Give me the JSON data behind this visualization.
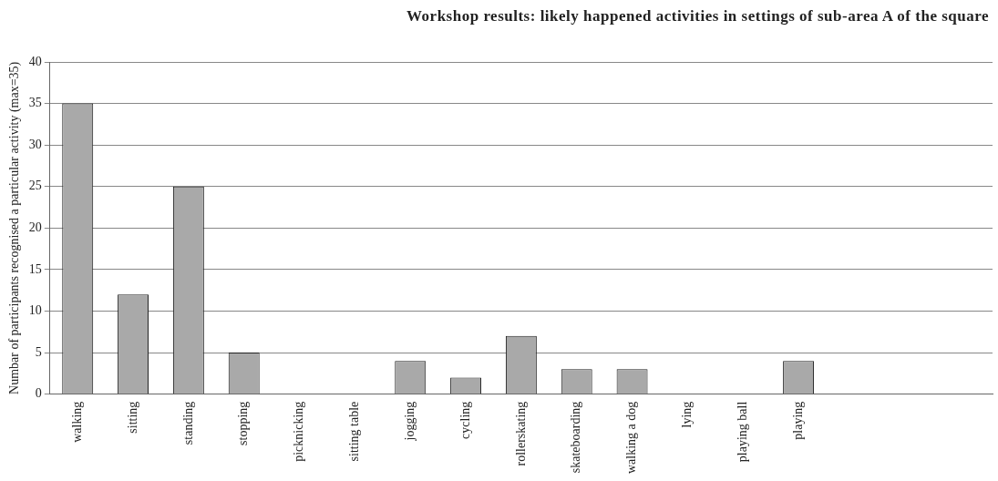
{
  "chart_data": {
    "type": "bar",
    "title": "Workshop results: likely happened activities in settings of sub-area A of the square",
    "ylabel": "Numbar of participants recognised a particular activity (max=35)",
    "categories": [
      "walking",
      "sitting",
      "standing",
      "stopping",
      "picknicking",
      "sitting table",
      "jogging",
      "cycling",
      "rollerskating",
      "skateboarding",
      "walking a dog",
      "lying",
      "playing ball",
      "playing",
      null,
      null,
      null
    ],
    "values": [
      35,
      12,
      25,
      5,
      0,
      0,
      4,
      2,
      7,
      3,
      3,
      0,
      0,
      4,
      0,
      0,
      0
    ],
    "color": "#a9a9a9",
    "ylim": [
      0,
      40
    ],
    "yticks": [
      0,
      5,
      10,
      15,
      20,
      25,
      30,
      35,
      40
    ],
    "grid": "y",
    "legend": false
  }
}
